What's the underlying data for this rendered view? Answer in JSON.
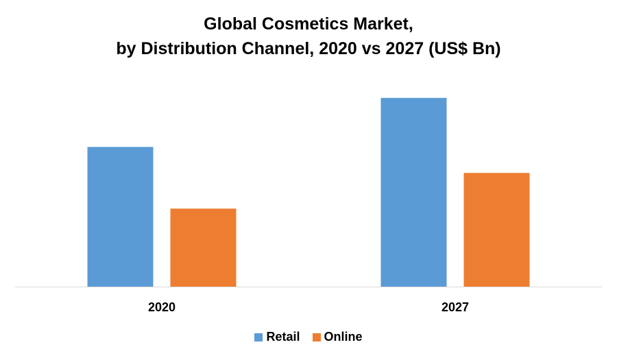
{
  "chart_data": {
    "type": "bar",
    "title_lines": [
      "Global Cosmetics Market,",
      "by Distribution Channel, 2020 vs 2027 (US$ Bn)"
    ],
    "categories": [
      "2020",
      "2027"
    ],
    "series": [
      {
        "name": "Retail",
        "color": "#5B9BD5",
        "values": [
          188,
          254
        ]
      },
      {
        "name": "Online",
        "color": "#ED7D31",
        "values": [
          105,
          153
        ]
      }
    ],
    "ylim": [
      0,
      275
    ],
    "grid": false,
    "legend_position": "bottom"
  }
}
